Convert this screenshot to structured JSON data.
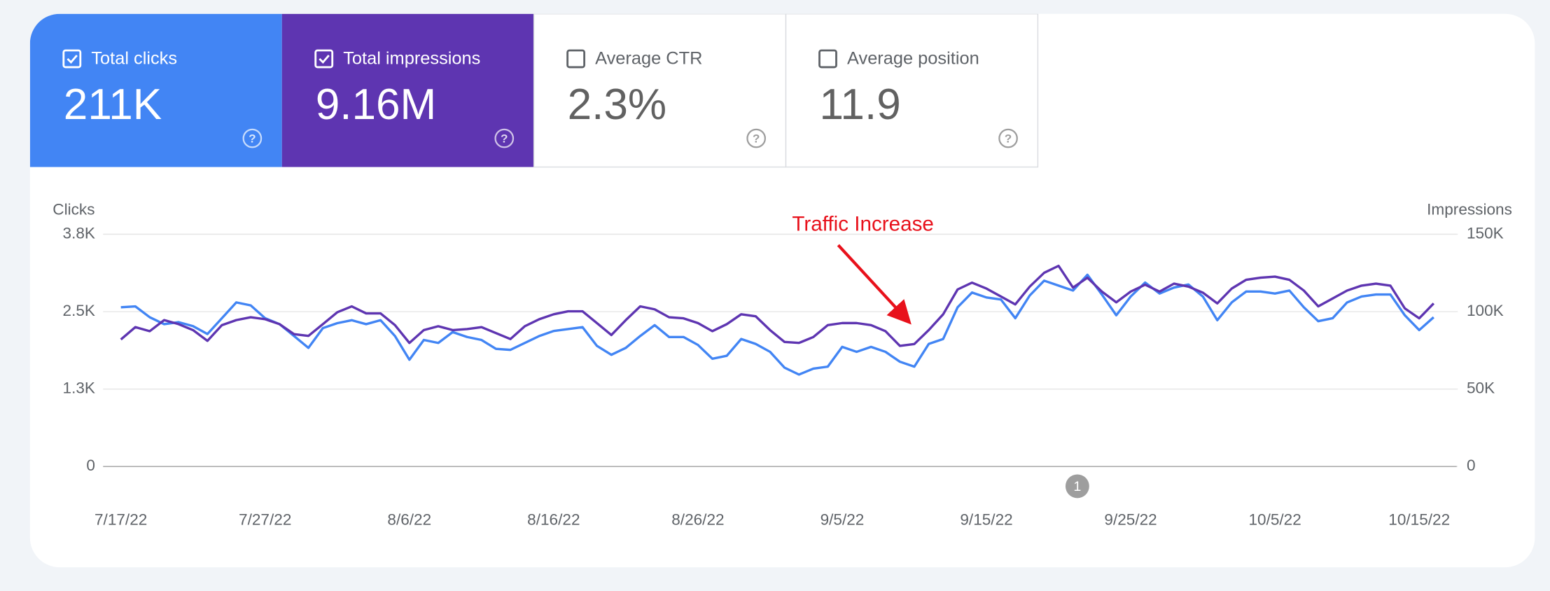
{
  "cards": [
    {
      "label": "Total clicks",
      "value": "211K",
      "checked": true,
      "color": "#4285f4"
    },
    {
      "label": "Total impressions",
      "value": "9.16M",
      "checked": true,
      "color": "#5e35b1"
    },
    {
      "label": "Average CTR",
      "value": "2.3%",
      "checked": false,
      "color": "#ffffff"
    },
    {
      "label": "Average position",
      "value": "11.9",
      "checked": false,
      "color": "#ffffff"
    }
  ],
  "chart_data": {
    "type": "line",
    "y_label": "Clicks",
    "y2_label": "Impressions",
    "annotation": "Traffic Increase",
    "event_marker": "1",
    "categories": [
      "7/17/22",
      null,
      null,
      null,
      null,
      null,
      null,
      null,
      null,
      null,
      "7/27/22",
      null,
      null,
      null,
      null,
      null,
      null,
      null,
      null,
      null,
      "8/6/22",
      null,
      null,
      null,
      null,
      null,
      null,
      null,
      null,
      null,
      "8/16/22",
      null,
      null,
      null,
      null,
      null,
      null,
      null,
      null,
      null,
      "8/26/22",
      null,
      null,
      null,
      null,
      null,
      null,
      null,
      null,
      null,
      "9/5/22",
      null,
      null,
      null,
      null,
      null,
      null,
      null,
      null,
      null,
      "9/15/22",
      null,
      null,
      null,
      null,
      null,
      null,
      null,
      null,
      null,
      "9/25/22",
      null,
      null,
      null,
      null,
      null,
      null,
      null,
      null,
      null,
      "10/5/22",
      null,
      null,
      null,
      null,
      null,
      null,
      null,
      null,
      null,
      "10/15/22",
      null
    ],
    "series": [
      {
        "name": "Total clicks",
        "color": "#4285f4",
        "axis": "y",
        "values": [
          2570,
          2585,
          2410,
          2298,
          2330,
          2266,
          2139,
          2394,
          2649,
          2601,
          2394,
          2298,
          2107,
          1915,
          2234,
          2314,
          2362,
          2298,
          2362,
          2107,
          1724,
          2043,
          1995,
          2171,
          2091,
          2043,
          1899,
          1883,
          1995,
          2107,
          2187,
          2218,
          2250,
          1947,
          1803,
          1915,
          2107,
          2282,
          2091,
          2091,
          1963,
          1740,
          1788,
          2059,
          1979,
          1851,
          1596,
          1484,
          1580,
          1612,
          1931,
          1851,
          1931,
          1851,
          1692,
          1612,
          1979,
          2059,
          2570,
          2809,
          2729,
          2697,
          2394,
          2761,
          3000,
          2921,
          2841,
          3096,
          2777,
          2442,
          2745,
          2969,
          2793,
          2889,
          2937,
          2745,
          2362,
          2649,
          2825,
          2825,
          2793,
          2841,
          2570,
          2346,
          2394,
          2649,
          2745,
          2777,
          2777,
          2442,
          2202,
          2410
        ]
      },
      {
        "name": "Total impressions",
        "color": "#5e35b1",
        "axis": "y2",
        "values": [
          82000,
          90000,
          87400,
          94500,
          91900,
          88100,
          81100,
          91300,
          94500,
          96400,
          95100,
          91900,
          85500,
          84300,
          91900,
          99600,
          103400,
          98900,
          98900,
          91300,
          79800,
          88100,
          90600,
          88100,
          88700,
          90000,
          86200,
          82300,
          90600,
          95100,
          98300,
          100200,
          100200,
          92600,
          84900,
          94500,
          103400,
          101500,
          96400,
          95700,
          92600,
          87400,
          91900,
          98300,
          97000,
          88100,
          80400,
          79800,
          83600,
          91300,
          92600,
          92600,
          91300,
          87400,
          77900,
          79100,
          88100,
          98300,
          114300,
          118700,
          114900,
          109800,
          104700,
          116200,
          125100,
          129600,
          115500,
          121900,
          113000,
          106000,
          113000,
          117400,
          113000,
          118100,
          116200,
          112300,
          105300,
          114900,
          120600,
          121900,
          122600,
          120600,
          113600,
          103400,
          108500,
          113600,
          116800,
          118100,
          116800,
          102100,
          95700,
          105300
        ]
      }
    ],
    "ylim": [
      0,
      3750
    ],
    "yticks": [
      0,
      {
        "value": 1250,
        "label": "1.3K"
      },
      {
        "value": 2500,
        "label": "2.5K"
      },
      {
        "value": 3750,
        "label": "3.8K"
      }
    ],
    "y2lim": [
      0,
      150000
    ],
    "y2ticks": [
      0,
      {
        "value": 50000,
        "label": "50K"
      },
      {
        "value": 100000,
        "label": "100K"
      },
      {
        "value": 150000,
        "label": "150K"
      }
    ],
    "grid": true
  }
}
